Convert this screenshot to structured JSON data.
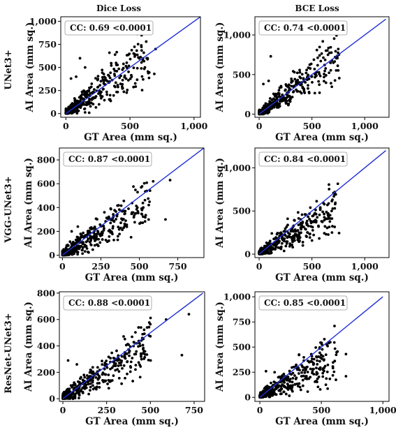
{
  "column_titles": [
    "Dice Loss",
    "BCE Loss"
  ],
  "row_labels": [
    "UNet3+",
    "VGG-UNet3+",
    "ResNet-UNet3+"
  ],
  "chart_data": [
    {
      "type": "scatter",
      "row": 0,
      "col": 0,
      "xlabel": "GT Area (mm sq.)",
      "ylabel": "AI Area (mm sq.)",
      "xlim": [
        -40,
        1050
      ],
      "ylim": [
        -40,
        1050
      ],
      "xticks": [
        0,
        500,
        1000
      ],
      "xtick_labels": [
        "0",
        "500",
        "1,000"
      ],
      "yticks": [
        0,
        250,
        500,
        750,
        1000
      ],
      "ytick_labels": [
        "0",
        "250",
        "500",
        "750",
        "1,000"
      ],
      "annotation": "CC: 0.69 <0.0001",
      "fit_line": [
        [
          0,
          0
        ],
        [
          1050,
          1050
        ]
      ],
      "seed": 11,
      "n_points": 420,
      "spread": 0.55,
      "bias": 1.0,
      "outliers": [
        [
          110,
          600
        ],
        [
          700,
          700
        ],
        [
          690,
          430
        ],
        [
          600,
          580
        ],
        [
          40,
          380
        ],
        [
          80,
          400
        ],
        [
          150,
          500
        ]
      ]
    },
    {
      "type": "scatter",
      "row": 0,
      "col": 1,
      "xlabel": "GT Area (mm sq.)",
      "ylabel": "AI Area (mm sq.)",
      "xlim": [
        -40,
        1230
      ],
      "ylim": [
        -40,
        1230
      ],
      "xticks": [
        0,
        500,
        1000
      ],
      "xtick_labels": [
        "0",
        "500",
        "1,000"
      ],
      "yticks": [
        0,
        500,
        1000
      ],
      "ytick_labels": [
        "0",
        "500",
        "1,000"
      ],
      "annotation": "CC: 0.74 <0.0001",
      "fit_line": [
        [
          0,
          0
        ],
        [
          1200,
          1200
        ]
      ],
      "seed": 23,
      "n_points": 420,
      "spread": 0.45,
      "bias": 1.0,
      "outliers": [
        [
          110,
          730
        ],
        [
          720,
          720
        ],
        [
          680,
          390
        ],
        [
          620,
          620
        ],
        [
          40,
          380
        ],
        [
          90,
          420
        ]
      ]
    },
    {
      "type": "scatter",
      "row": 1,
      "col": 0,
      "xlabel": "GT Area (mm sq.)",
      "ylabel": "AI Area (mm sq.)",
      "xlim": [
        -20,
        920
      ],
      "ylim": [
        -20,
        900
      ],
      "xticks": [
        0,
        250,
        500,
        750
      ],
      "xtick_labels": [
        "0",
        "250",
        "500",
        "750"
      ],
      "yticks": [
        0,
        200,
        400,
        600,
        800
      ],
      "ytick_labels": [
        "0",
        "200",
        "400",
        "600",
        "800"
      ],
      "annotation": "CC: 0.87 <0.0001",
      "fit_line": [
        [
          0,
          0
        ],
        [
          920,
          900
        ]
      ],
      "seed": 37,
      "n_points": 420,
      "spread": 0.35,
      "bias": 0.8,
      "outliers": [
        [
          700,
          630
        ],
        [
          590,
          620
        ],
        [
          670,
          300
        ],
        [
          60,
          200
        ],
        [
          100,
          240
        ]
      ]
    },
    {
      "type": "scatter",
      "row": 1,
      "col": 1,
      "xlabel": "GT Area (mm sq.)",
      "ylabel": "AI Area (mm sq.)",
      "xlim": [
        -40,
        1230
      ],
      "ylim": [
        -40,
        1230
      ],
      "xticks": [
        0,
        500,
        1000
      ],
      "xtick_labels": [
        "0",
        "500",
        "1,000"
      ],
      "yticks": [
        0,
        500,
        1000
      ],
      "ytick_labels": [
        "0",
        "500",
        "1,000"
      ],
      "annotation": "CC: 0.84 <0.0001",
      "fit_line": [
        [
          0,
          0
        ],
        [
          1200,
          1200
        ]
      ],
      "seed": 53,
      "n_points": 420,
      "spread": 0.35,
      "bias": 0.75,
      "outliers": [
        [
          720,
          580
        ],
        [
          610,
          590
        ],
        [
          690,
          250
        ],
        [
          270,
          410
        ],
        [
          120,
          240
        ]
      ]
    },
    {
      "type": "scatter",
      "row": 2,
      "col": 0,
      "xlabel": "GT Area (mm sq.)",
      "ylabel": "AI Area (mm sq.)",
      "xlim": [
        -20,
        810
      ],
      "ylim": [
        -20,
        810
      ],
      "xticks": [
        0,
        250,
        500,
        750
      ],
      "xtick_labels": [
        "0",
        "250",
        "500",
        "750"
      ],
      "yticks": [
        0,
        200,
        400,
        600,
        800
      ],
      "ytick_labels": [
        "0",
        "200",
        "400",
        "600",
        "800"
      ],
      "annotation": "CC: 0.88 <0.0001",
      "fit_line": [
        [
          0,
          0
        ],
        [
          800,
          800
        ]
      ],
      "seed": 71,
      "n_points": 420,
      "spread": 0.33,
      "bias": 0.85,
      "outliers": [
        [
          720,
          640
        ],
        [
          590,
          600
        ],
        [
          680,
          330
        ],
        [
          30,
          290
        ],
        [
          80,
          260
        ]
      ]
    },
    {
      "type": "scatter",
      "row": 2,
      "col": 1,
      "xlabel": "GT Area (mm sq.)",
      "ylabel": "AI Area (mm sq.)",
      "xlim": [
        -40,
        1050
      ],
      "ylim": [
        -40,
        1050
      ],
      "xticks": [
        0,
        500,
        1000
      ],
      "xtick_labels": [
        "0",
        "500",
        "1,000"
      ],
      "yticks": [
        0,
        250,
        500,
        750,
        1000
      ],
      "ytick_labels": [
        "0",
        "250",
        "500",
        "750",
        "1,000"
      ],
      "annotation": "CC: 0.85 <0.0001",
      "fit_line": [
        [
          0,
          0
        ],
        [
          1000,
          1000
        ]
      ],
      "seed": 89,
      "n_points": 420,
      "spread": 0.4,
      "bias": 0.7,
      "outliers": [
        [
          700,
          430
        ],
        [
          560,
          540
        ],
        [
          700,
          210
        ],
        [
          50,
          260
        ],
        [
          120,
          250
        ]
      ]
    }
  ]
}
